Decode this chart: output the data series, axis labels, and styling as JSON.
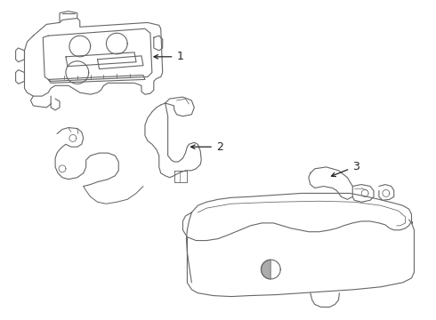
{
  "background_color": "#ffffff",
  "line_color": "#666666",
  "line_width": 0.8,
  "callout_color": "#222222",
  "label_fontsize": 9,
  "fig_width": 4.9,
  "fig_height": 3.6,
  "dpi": 100
}
